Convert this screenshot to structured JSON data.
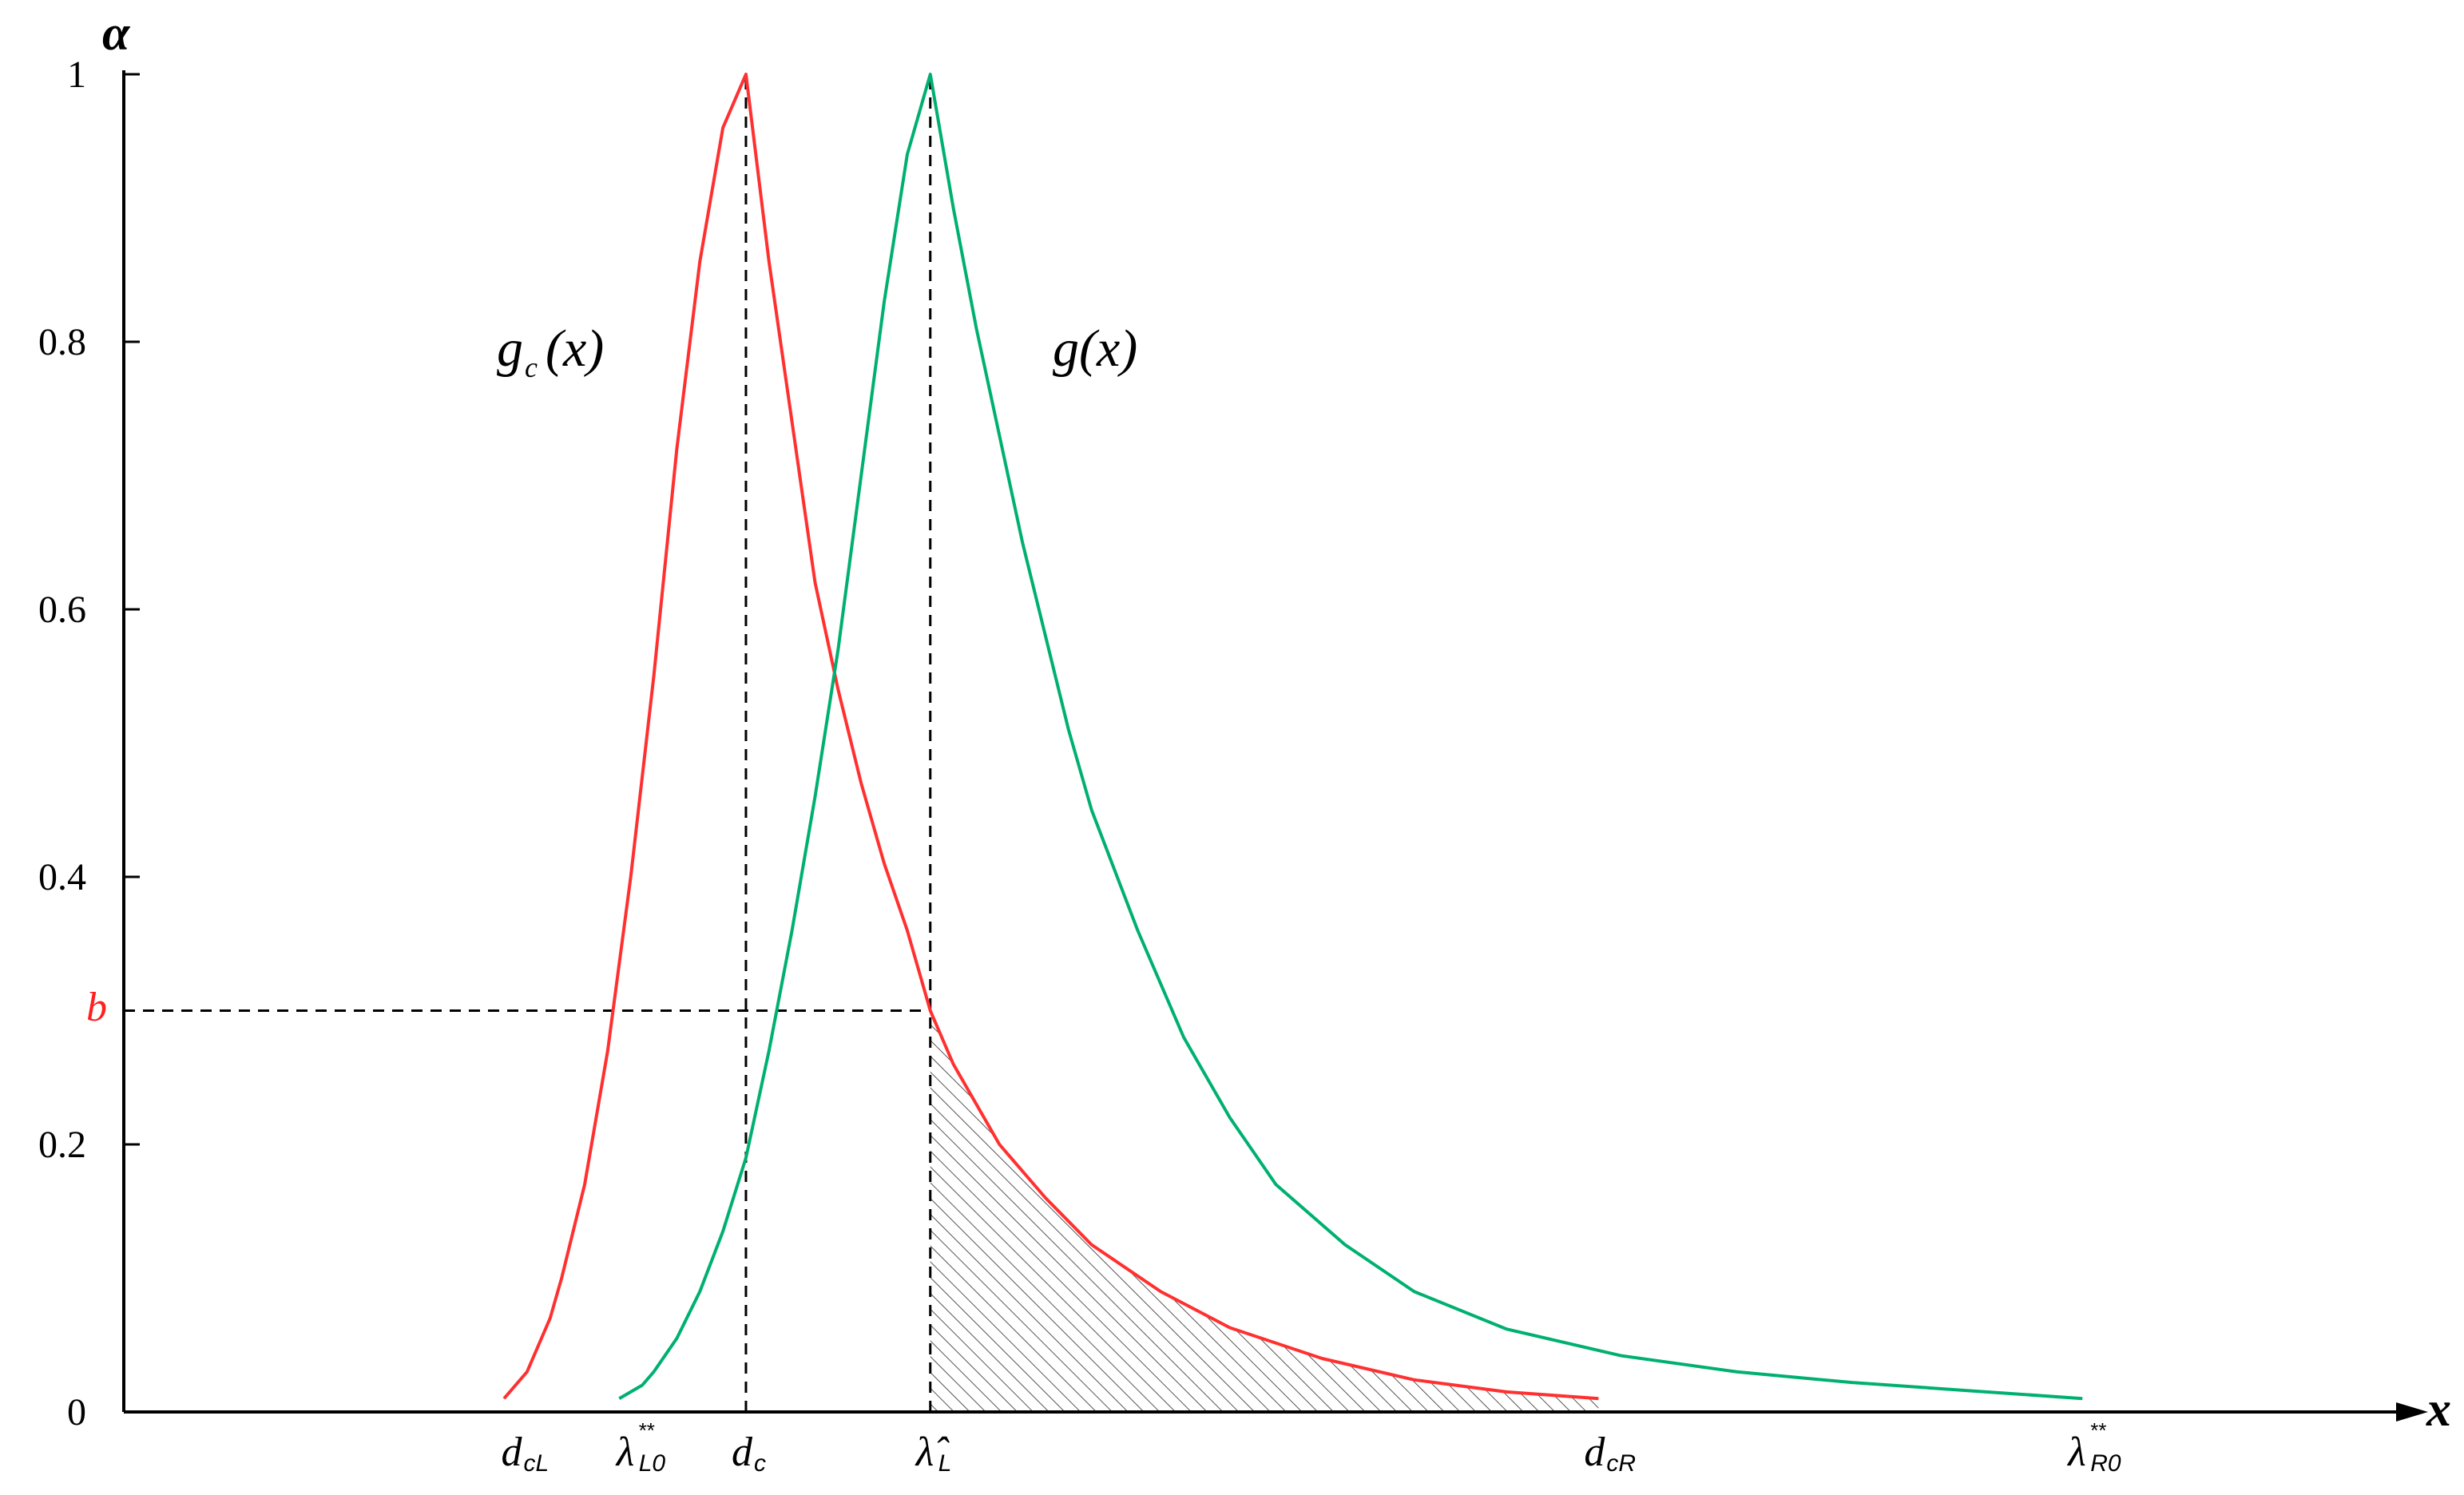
{
  "chart_data": {
    "type": "line",
    "title": "",
    "ylabel": "α",
    "xlabel": "x",
    "ylim": [
      0,
      1
    ],
    "y_ticks": [
      {
        "value": 0,
        "label": "0"
      },
      {
        "value": 0.2,
        "label": "0.2"
      },
      {
        "value": 0.4,
        "label": "0.4"
      },
      {
        "value": 0.6,
        "label": "0.6"
      },
      {
        "value": 0.8,
        "label": "0.8"
      },
      {
        "value": 1,
        "label": "1"
      }
    ],
    "b_level": {
      "value": 0.3,
      "label": "b"
    },
    "x_markers": [
      {
        "key": "dcL",
        "value": 0.17,
        "main": "d",
        "sub": "cL",
        "sup": ""
      },
      {
        "key": "lambdaL0",
        "value": 0.22,
        "main": "λ",
        "sub": "L0",
        "sup": "**"
      },
      {
        "key": "dc",
        "value": 0.27,
        "main": "d",
        "sub": "c",
        "sup": ""
      },
      {
        "key": "lambdaHatL",
        "value": 0.35,
        "main": "λ̂",
        "sub": "L",
        "sup": ""
      },
      {
        "key": "dcR",
        "value": 0.64,
        "main": "d",
        "sub": "cR",
        "sup": ""
      },
      {
        "key": "lambdaR0",
        "value": 0.85,
        "main": "λ",
        "sub": "R0",
        "sup": "**"
      }
    ],
    "series": [
      {
        "name": "g_c(x)",
        "label_main": "g",
        "label_sub": "c",
        "label_tail": "(x)",
        "color": "#ff3030",
        "x": [
          0.165,
          0.17,
          0.175,
          0.18,
          0.185,
          0.19,
          0.2,
          0.21,
          0.22,
          0.23,
          0.24,
          0.25,
          0.26,
          0.27,
          0.275,
          0.28,
          0.29,
          0.3,
          0.31,
          0.32,
          0.33,
          0.34,
          0.35,
          0.36,
          0.37,
          0.38,
          0.4,
          0.42,
          0.45,
          0.48,
          0.52,
          0.56,
          0.6,
          0.64
        ],
        "y": [
          0.01,
          0.02,
          0.03,
          0.05,
          0.07,
          0.1,
          0.17,
          0.27,
          0.4,
          0.55,
          0.72,
          0.86,
          0.96,
          1.0,
          0.93,
          0.86,
          0.74,
          0.62,
          0.54,
          0.47,
          0.41,
          0.36,
          0.3,
          0.26,
          0.23,
          0.2,
          0.16,
          0.125,
          0.09,
          0.063,
          0.04,
          0.024,
          0.015,
          0.01
        ]
      },
      {
        "name": "g(x)",
        "label_main": "g",
        "label_sub": "",
        "label_tail": "(x)",
        "color": "#00b070",
        "x": [
          0.215,
          0.22,
          0.225,
          0.23,
          0.24,
          0.25,
          0.26,
          0.27,
          0.28,
          0.29,
          0.3,
          0.31,
          0.32,
          0.33,
          0.34,
          0.35,
          0.36,
          0.37,
          0.38,
          0.39,
          0.4,
          0.41,
          0.42,
          0.44,
          0.46,
          0.48,
          0.5,
          0.53,
          0.56,
          0.6,
          0.65,
          0.7,
          0.75,
          0.8,
          0.85
        ],
        "y": [
          0.01,
          0.015,
          0.02,
          0.03,
          0.055,
          0.09,
          0.135,
          0.19,
          0.27,
          0.36,
          0.46,
          0.57,
          0.7,
          0.83,
          0.94,
          1.0,
          0.9,
          0.81,
          0.73,
          0.65,
          0.58,
          0.51,
          0.45,
          0.36,
          0.28,
          0.22,
          0.17,
          0.125,
          0.09,
          0.062,
          0.042,
          0.03,
          0.022,
          0.016,
          0.01
        ]
      }
    ],
    "shaded_region": {
      "from": 0.35,
      "to": 0.64,
      "under": "g_c(x)"
    },
    "grid": false,
    "legend": "none"
  }
}
